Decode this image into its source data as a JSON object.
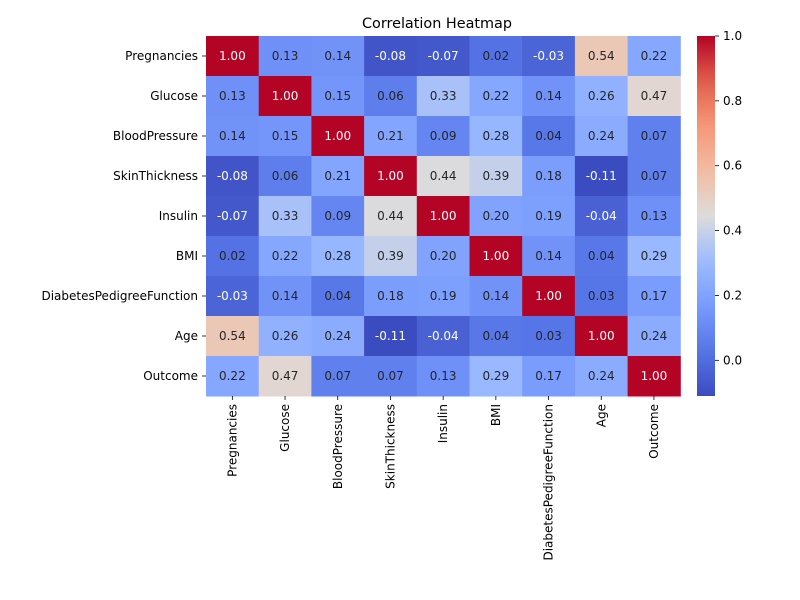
{
  "chart_data": {
    "type": "heatmap",
    "title": "Correlation Heatmap",
    "xlabel": "",
    "ylabel": "",
    "colormap": "coolwarm",
    "colorbar": {
      "range": [
        -0.11,
        1.0
      ],
      "ticks": [
        0.0,
        0.2,
        0.4,
        0.6,
        0.8,
        1.0
      ],
      "tick_labels": [
        "0.0",
        "0.2",
        "0.4",
        "0.6",
        "0.8",
        "1.0"
      ]
    },
    "rows": [
      "Pregnancies",
      "Glucose",
      "BloodPressure",
      "SkinThickness",
      "Insulin",
      "BMI",
      "DiabetesPedigreeFunction",
      "Age",
      "Outcome"
    ],
    "columns": [
      "Pregnancies",
      "Glucose",
      "BloodPressure",
      "SkinThickness",
      "Insulin",
      "BMI",
      "DiabetesPedigreeFunction",
      "Age",
      "Outcome"
    ],
    "values": [
      [
        1.0,
        0.13,
        0.14,
        -0.08,
        -0.07,
        0.02,
        -0.03,
        0.54,
        0.22
      ],
      [
        0.13,
        1.0,
        0.15,
        0.06,
        0.33,
        0.22,
        0.14,
        0.26,
        0.47
      ],
      [
        0.14,
        0.15,
        1.0,
        0.21,
        0.09,
        0.28,
        0.04,
        0.24,
        0.07
      ],
      [
        -0.08,
        0.06,
        0.21,
        1.0,
        0.44,
        0.39,
        0.18,
        -0.11,
        0.07
      ],
      [
        -0.07,
        0.33,
        0.09,
        0.44,
        1.0,
        0.2,
        0.19,
        -0.04,
        0.13
      ],
      [
        0.02,
        0.22,
        0.28,
        0.39,
        0.2,
        1.0,
        0.14,
        0.04,
        0.29
      ],
      [
        -0.03,
        0.14,
        0.04,
        0.18,
        0.19,
        0.14,
        1.0,
        0.03,
        0.17
      ],
      [
        0.54,
        0.26,
        0.24,
        -0.11,
        -0.04,
        0.04,
        0.03,
        1.0,
        0.24
      ],
      [
        0.22,
        0.47,
        0.07,
        0.07,
        0.13,
        0.29,
        0.17,
        0.24,
        1.0
      ]
    ],
    "value_labels": [
      [
        "1.00",
        "0.13",
        "0.14",
        "-0.08",
        "-0.07",
        "0.02",
        "-0.03",
        "0.54",
        "0.22"
      ],
      [
        "0.13",
        "1.00",
        "0.15",
        "0.06",
        "0.33",
        "0.22",
        "0.14",
        "0.26",
        "0.47"
      ],
      [
        "0.14",
        "0.15",
        "1.00",
        "0.21",
        "0.09",
        "0.28",
        "0.04",
        "0.24",
        "0.07"
      ],
      [
        "-0.08",
        "0.06",
        "0.21",
        "1.00",
        "0.44",
        "0.39",
        "0.18",
        "-0.11",
        "0.07"
      ],
      [
        "-0.07",
        "0.33",
        "0.09",
        "0.44",
        "1.00",
        "0.20",
        "0.19",
        "-0.04",
        "0.13"
      ],
      [
        "0.02",
        "0.22",
        "0.28",
        "0.39",
        "0.20",
        "1.00",
        "0.14",
        "0.04",
        "0.29"
      ],
      [
        "-0.03",
        "0.14",
        "0.04",
        "0.18",
        "0.19",
        "0.14",
        "1.00",
        "0.03",
        "0.17"
      ],
      [
        "0.54",
        "0.26",
        "0.24",
        "-0.11",
        "-0.04",
        "0.04",
        "0.03",
        "1.00",
        "0.24"
      ],
      [
        "0.22",
        "0.47",
        "0.07",
        "0.07",
        "0.13",
        "0.29",
        "0.17",
        "0.24",
        "1.00"
      ]
    ]
  }
}
